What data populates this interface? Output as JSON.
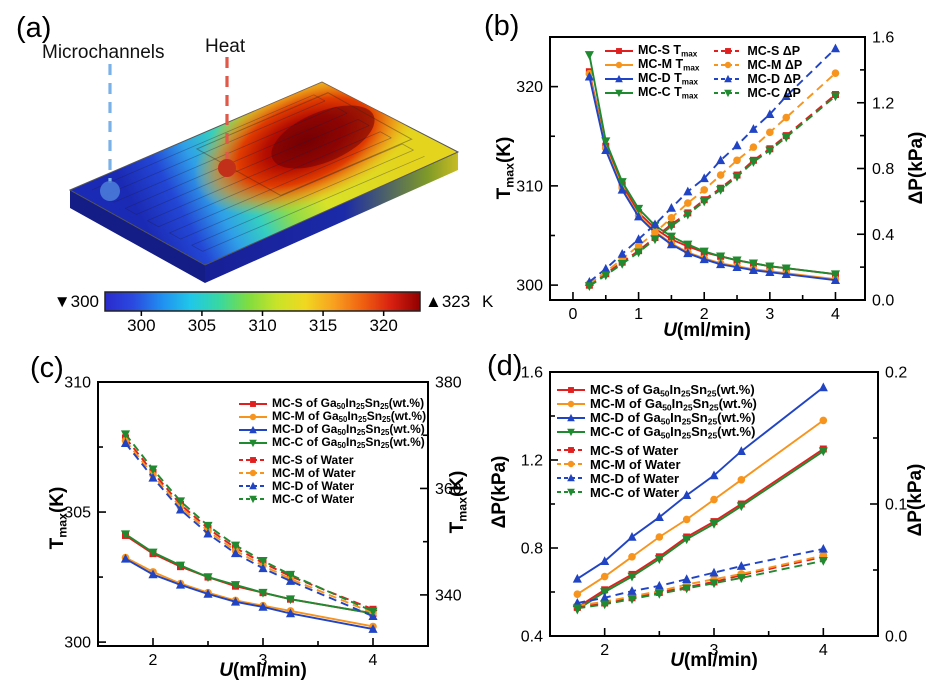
{
  "palette": {
    "red": "#e02020",
    "orange": "#f7941d",
    "blue": "#2144c4",
    "green": "#1f8a2f",
    "black": "#000000",
    "anno_blue": "#7ab2e8",
    "anno_red": "#e05848",
    "dot_blue": "#4a7ad8",
    "dot_red": "#c2301a"
  },
  "panels": {
    "a": {
      "letter": "(a)"
    },
    "b": {
      "letter": "(b)"
    },
    "c": {
      "letter": "(c)"
    },
    "d": {
      "letter": "(d)"
    }
  },
  "chart_data": [
    {
      "panel": "a",
      "type": "heatmap",
      "annotations": {
        "microchannels": "Microchannels",
        "heat": "Heat"
      },
      "colorbar": {
        "min_label": "▼300",
        "max_label": "▲323",
        "unit": "K",
        "ticks": [
          "300",
          "305",
          "310",
          "315",
          "320"
        ],
        "tick_values": [
          300,
          305,
          310,
          315,
          320
        ],
        "range": [
          297,
          323
        ],
        "stops": [
          "#2a2acc",
          "#2a4ae0",
          "#2090f0",
          "#20c8e8",
          "#38d8a0",
          "#80dc40",
          "#c8e428",
          "#f0d820",
          "#f8a020",
          "#f06010",
          "#d82010",
          "#900000"
        ]
      }
    },
    {
      "panel": "b",
      "type": "line",
      "xlabel": "*U*(ml/min)",
      "ylabel_left": "T_{max}(K)",
      "ylabel_right": "ΔP(kPa)",
      "x_axis": {
        "range": [
          -0.35,
          4.45
        ],
        "ticks": [
          0,
          1,
          2,
          3,
          4
        ],
        "tick_labels": [
          "0",
          "1",
          "2",
          "3",
          "4"
        ],
        "minor": [
          0.5,
          1.5,
          2.5,
          3.5
        ]
      },
      "y_left": {
        "range": [
          298.5,
          325
        ],
        "ticks": [
          300,
          310,
          320
        ],
        "tick_labels": [
          "300",
          "310",
          "320"
        ],
        "minor": [
          305,
          315
        ]
      },
      "y_right": {
        "range": [
          0,
          1.6
        ],
        "ticks": [
          0,
          0.4,
          0.8,
          1.2,
          1.6
        ],
        "tick_labels": [
          "0.0",
          "0.4",
          "0.8",
          "1.2",
          "1.6"
        ],
        "minor": [
          0.2,
          0.6,
          1.0,
          1.4
        ]
      },
      "x_values": [
        0.25,
        0.5,
        0.75,
        1.0,
        1.25,
        1.5,
        1.75,
        2.0,
        2.25,
        2.5,
        2.75,
        3.0,
        3.25,
        4.0
      ],
      "series": [
        {
          "label": "MC-S T_{max}",
          "color": "red",
          "marker": "square",
          "line": "solid",
          "axis": "left",
          "values": [
            321.5,
            314.0,
            310.1,
            307.3,
            305.7,
            304.6,
            303.9,
            303.3,
            302.9,
            302.5,
            302.2,
            301.9,
            301.7,
            301.1
          ]
        },
        {
          "label": "MC-M T_{max}",
          "color": "orange",
          "marker": "circle",
          "line": "solid",
          "axis": "left",
          "values": [
            321.3,
            313.8,
            309.8,
            307.0,
            305.4,
            304.2,
            303.3,
            302.7,
            302.2,
            301.9,
            301.6,
            301.4,
            301.2,
            300.6
          ]
        },
        {
          "label": "MC-D T_{max}",
          "color": "blue",
          "marker": "triangle-up",
          "line": "solid",
          "axis": "left",
          "values": [
            321.0,
            313.6,
            309.6,
            306.9,
            305.3,
            304.1,
            303.2,
            302.6,
            302.1,
            301.8,
            301.5,
            301.3,
            301.1,
            300.5
          ]
        },
        {
          "label": "MC-C T_{max}",
          "color": "green",
          "marker": "triangle-down",
          "line": "solid",
          "axis": "left",
          "values": [
            323.2,
            314.5,
            310.4,
            307.7,
            306.0,
            304.9,
            304.1,
            303.4,
            302.9,
            302.5,
            302.2,
            301.9,
            301.7,
            301.1
          ]
        },
        {
          "label": "MC-S ΔP",
          "color": "red",
          "marker": "square",
          "line": "dashed",
          "axis": "right",
          "values": [
            0.09,
            0.16,
            0.23,
            0.3,
            0.38,
            0.46,
            0.53,
            0.61,
            0.68,
            0.76,
            0.85,
            0.92,
            1.0,
            1.25
          ]
        },
        {
          "label": "MC-M ΔP",
          "color": "orange",
          "marker": "circle",
          "line": "dashed",
          "axis": "right",
          "values": [
            0.1,
            0.17,
            0.25,
            0.33,
            0.41,
            0.5,
            0.59,
            0.67,
            0.76,
            0.85,
            0.93,
            1.02,
            1.11,
            1.38
          ]
        },
        {
          "label": "MC-D ΔP",
          "color": "blue",
          "marker": "triangle-up",
          "line": "dashed",
          "axis": "right",
          "values": [
            0.11,
            0.19,
            0.28,
            0.37,
            0.46,
            0.56,
            0.66,
            0.74,
            0.85,
            0.94,
            1.04,
            1.13,
            1.24,
            1.53
          ]
        },
        {
          "label": "MC-C ΔP",
          "color": "green",
          "marker": "triangle-down",
          "line": "dashed",
          "axis": "right",
          "values": [
            0.085,
            0.15,
            0.22,
            0.29,
            0.37,
            0.45,
            0.52,
            0.6,
            0.67,
            0.75,
            0.84,
            0.91,
            0.99,
            1.24
          ]
        }
      ]
    },
    {
      "panel": "c",
      "type": "line",
      "xlabel": "*U*(ml/min)",
      "ylabel_left": "T_{max}(K)",
      "ylabel_right": "T_{max}(K)",
      "x_axis": {
        "range": [
          1.5,
          4.5
        ],
        "ticks": [
          2,
          3,
          4
        ],
        "tick_labels": [
          "2",
          "3",
          "4"
        ],
        "minor": [
          2.5,
          3.5
        ]
      },
      "y_left": {
        "range": [
          299.85,
          310
        ],
        "ticks": [
          300,
          305,
          310
        ],
        "tick_labels": [
          "300",
          "305",
          "310"
        ],
        "minor": [
          302.5,
          307.5
        ]
      },
      "y_right": {
        "range": [
          330.4,
          380
        ],
        "ticks": [
          340,
          360,
          380
        ],
        "tick_labels": [
          "340",
          "360",
          "380"
        ],
        "minor": [
          350,
          370
        ]
      },
      "x_values": [
        1.75,
        2.0,
        2.25,
        2.5,
        2.75,
        3.0,
        3.25,
        4.0
      ],
      "series": [
        {
          "label": "MC-S of Ga_{50}In_{25}Sn_{25}(wt.%)",
          "color": "red",
          "marker": "square",
          "line": "solid",
          "axis": "left",
          "values": [
            304.1,
            303.4,
            302.9,
            302.5,
            302.15,
            301.9,
            301.65,
            301.1
          ]
        },
        {
          "label": "MC-M of Ga_{50}In_{25}Sn_{25}(wt.%)",
          "color": "orange",
          "marker": "circle",
          "line": "solid",
          "axis": "left",
          "values": [
            303.25,
            302.7,
            302.25,
            301.9,
            301.6,
            301.4,
            301.2,
            300.6
          ]
        },
        {
          "label": "MC-D of Ga_{50}In_{25}Sn_{25}(wt.%)",
          "color": "blue",
          "marker": "triangle-up",
          "line": "solid",
          "axis": "left",
          "values": [
            303.2,
            302.6,
            302.2,
            301.85,
            301.55,
            301.35,
            301.1,
            300.5
          ]
        },
        {
          "label": "MC-C of Ga_{50}In_{25}Sn_{25}(wt.%)",
          "color": "green",
          "marker": "triangle-down",
          "line": "solid",
          "axis": "left",
          "values": [
            304.15,
            303.45,
            302.95,
            302.5,
            302.2,
            301.9,
            301.65,
            301.1
          ]
        },
        {
          "label": "MC-S of Water",
          "color": "red",
          "marker": "square",
          "line": "dashed",
          "axis": "right",
          "values": [
            369.5,
            363.0,
            357.0,
            352.5,
            348.8,
            346.0,
            343.5,
            337.3
          ]
        },
        {
          "label": "MC-M of Water",
          "color": "orange",
          "marker": "circle",
          "line": "dashed",
          "axis": "right",
          "values": [
            369.0,
            362.5,
            356.5,
            352.0,
            348.3,
            345.5,
            343.0,
            336.6
          ]
        },
        {
          "label": "MC-D of Water",
          "color": "blue",
          "marker": "triangle-up",
          "line": "dashed",
          "axis": "right",
          "values": [
            368.5,
            362.0,
            356.0,
            351.5,
            347.8,
            345.0,
            342.6,
            336.0
          ]
        },
        {
          "label": "MC-C of Water",
          "color": "green",
          "marker": "triangle-down",
          "line": "dashed",
          "axis": "right",
          "values": [
            370.2,
            363.6,
            357.6,
            353.0,
            349.3,
            346.4,
            343.8,
            336.9
          ]
        }
      ]
    },
    {
      "panel": "d",
      "type": "line",
      "xlabel": "*U*(ml/min)",
      "ylabel_left": "ΔP(kPa)",
      "ylabel_right": "ΔP(kPa)",
      "x_axis": {
        "range": [
          1.5,
          4.5
        ],
        "ticks": [
          2,
          3,
          4
        ],
        "tick_labels": [
          "2",
          "3",
          "4"
        ],
        "minor": [
          2.5,
          3.5
        ]
      },
      "y_left": {
        "range": [
          0.4,
          1.6
        ],
        "ticks": [
          0.4,
          0.8,
          1.2,
          1.6
        ],
        "tick_labels": [
          "0.4",
          "0.8",
          "1.2",
          "1.6"
        ],
        "minor": [
          0.6,
          1.0,
          1.4
        ]
      },
      "y_right": {
        "range": [
          0,
          0.2
        ],
        "ticks": [
          0,
          0.1,
          0.2
        ],
        "tick_labels": [
          "0.0",
          "0.1",
          "0.2"
        ],
        "minor": [
          0.05,
          0.15
        ]
      },
      "x_values": [
        1.75,
        2.0,
        2.25,
        2.5,
        2.75,
        3.0,
        3.25,
        4.0
      ],
      "series": [
        {
          "label": "MC-S of Ga_{50}In_{25}Sn_{25}(wt.%)",
          "color": "red",
          "marker": "square",
          "line": "solid",
          "axis": "left",
          "values": [
            0.53,
            0.61,
            0.68,
            0.76,
            0.85,
            0.92,
            1.0,
            1.25
          ]
        },
        {
          "label": "MC-M of Ga_{50}In_{25}Sn_{25}(wt.%)",
          "color": "orange",
          "marker": "circle",
          "line": "solid",
          "axis": "left",
          "values": [
            0.59,
            0.67,
            0.76,
            0.85,
            0.93,
            1.02,
            1.11,
            1.38
          ]
        },
        {
          "label": "MC-D of Ga_{50}In_{25}Sn_{25}(wt.%)",
          "color": "blue",
          "marker": "triangle-up",
          "line": "solid",
          "axis": "left",
          "values": [
            0.66,
            0.74,
            0.85,
            0.94,
            1.04,
            1.13,
            1.24,
            1.53
          ]
        },
        {
          "label": "MC-C of Ga_{50}In_{25}Sn_{25}(wt.%)",
          "color": "green",
          "marker": "triangle-down",
          "line": "solid",
          "axis": "left",
          "values": [
            0.52,
            0.6,
            0.67,
            0.75,
            0.84,
            0.91,
            0.99,
            1.24
          ]
        },
        {
          "label": "MC-S of Water",
          "color": "red",
          "marker": "square",
          "line": "dashed",
          "axis": "right",
          "values": [
            0.022,
            0.025,
            0.029,
            0.033,
            0.037,
            0.041,
            0.046,
            0.06
          ]
        },
        {
          "label": "MC-M of Water",
          "color": "orange",
          "marker": "circle",
          "line": "dashed",
          "axis": "right",
          "values": [
            0.023,
            0.026,
            0.03,
            0.034,
            0.039,
            0.043,
            0.047,
            0.061
          ]
        },
        {
          "label": "MC-D of Water",
          "color": "blue",
          "marker": "triangle-up",
          "line": "dashed",
          "axis": "right",
          "values": [
            0.025,
            0.029,
            0.034,
            0.038,
            0.043,
            0.048,
            0.053,
            0.066
          ]
        },
        {
          "label": "MC-C of Water",
          "color": "green",
          "marker": "triangle-down",
          "line": "dashed",
          "axis": "right",
          "values": [
            0.021,
            0.024,
            0.028,
            0.032,
            0.036,
            0.04,
            0.044,
            0.057
          ]
        }
      ]
    }
  ]
}
